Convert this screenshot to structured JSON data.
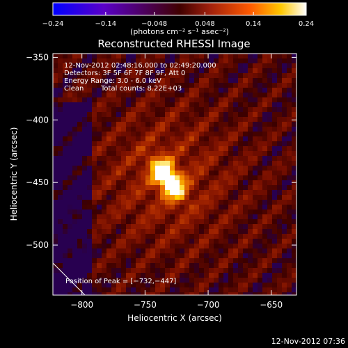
{
  "chart_data": {
    "type": "heatmap",
    "title": "Reconstructed RHESSI Image",
    "xlabel": "Heliocentric X (arcsec)",
    "ylabel": "Heliocentric Y (arcsec)",
    "xlim": [
      -823,
      -630
    ],
    "ylim": [
      -540,
      -347
    ],
    "xticks": [
      {
        "value": -800,
        "label": "−800"
      },
      {
        "value": -750,
        "label": "−750"
      },
      {
        "value": -700,
        "label": "−700"
      },
      {
        "value": -650,
        "label": "−650"
      }
    ],
    "yticks": [
      {
        "value": -350,
        "label": "−350"
      },
      {
        "value": -400,
        "label": "−400"
      },
      {
        "value": -450,
        "label": "−450"
      },
      {
        "value": -500,
        "label": "−500"
      }
    ],
    "colorbar": {
      "range": [
        -0.24,
        0.24
      ],
      "ticks": [
        {
          "value": -0.24,
          "label": "−0.24"
        },
        {
          "value": -0.14,
          "label": "−0.14"
        },
        {
          "value": -0.048,
          "label": "−0.048"
        },
        {
          "value": 0.048,
          "label": "0.048"
        },
        {
          "value": 0.14,
          "label": "0.14"
        },
        {
          "value": 0.24,
          "label": "0.24"
        }
      ],
      "unit_label": "(photons cm⁻² s⁻¹ asec⁻²)",
      "colors": [
        "#0000ff",
        "#5a00c8",
        "#a0208c",
        "#e0403c",
        "#ff8a00",
        "#ffd200",
        "#ffffff"
      ]
    },
    "peak": {
      "x": -732,
      "y": -447,
      "value": 0.24
    },
    "annotations": {
      "time": "12-Nov-2012 02:48:16.000 to 02:49:20.000",
      "detectors": "Detectors: 3F 5F 6F 7F 8F 9F, Att 0",
      "energy": "Energy Range: 3.0 - 6.0 keV",
      "method": "Clean",
      "counts": "Total counts: 8.22E+03",
      "peak_text": "Position of Peak = [−732,−447]"
    },
    "footer": "12-Nov-2012 07:36"
  }
}
